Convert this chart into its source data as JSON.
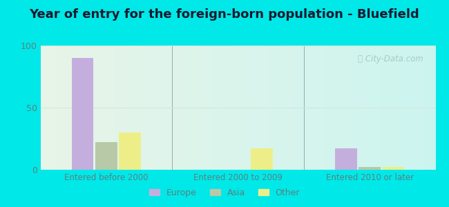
{
  "title": "Year of entry for the foreign-born population - Bluefield",
  "categories": [
    "Entered before 2000",
    "Entered 2000 to 2009",
    "Entered 2010 or later"
  ],
  "series": {
    "Europe": [
      90,
      0,
      17
    ],
    "Asia": [
      22,
      0,
      2
    ],
    "Other": [
      30,
      17,
      2
    ]
  },
  "colors": {
    "Europe": "#c4aede",
    "Asia": "#b8c9a8",
    "Other": "#eeee88"
  },
  "ylim": [
    0,
    100
  ],
  "yticks": [
    0,
    50,
    100
  ],
  "bar_width": 0.18,
  "background_color_fig": "#00e8e8",
  "title_fontsize": 13,
  "title_color": "#1a1a2e",
  "axis_label_color": "#5a8080",
  "ytick_color": "#5a8080",
  "watermark_text": "ⓘ City-Data.com",
  "watermark_color": "#a8c8c8",
  "legend_fontsize": 9,
  "grid_color": "#d0e8d8",
  "separator_color": "#90b0a0"
}
